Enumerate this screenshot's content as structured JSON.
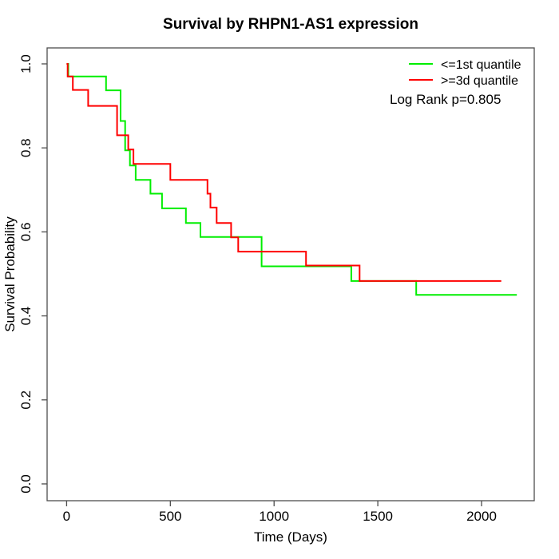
{
  "figure": {
    "background": "#ffffff",
    "title": "Survival by RHPN1-AS1 expression"
  },
  "chart_data": {
    "type": "line",
    "subtype": "kaplan-meier-step",
    "title": "Survival by RHPN1-AS1 expression",
    "xlabel": "Time (Days)",
    "ylabel": "Survival Probability",
    "xlim": [
      -94,
      2254
    ],
    "ylim": [
      -0.04,
      1.038
    ],
    "grid": false,
    "x_ticks": [
      {
        "value": 0,
        "label": "0"
      },
      {
        "value": 500,
        "label": "500"
      },
      {
        "value": 1000,
        "label": "1000"
      },
      {
        "value": 1500,
        "label": "1500"
      },
      {
        "value": 2000,
        "label": "2000"
      }
    ],
    "y_ticks": [
      {
        "value": 0.0,
        "label": "0.0"
      },
      {
        "value": 0.2,
        "label": "0.2"
      },
      {
        "value": 0.4,
        "label": "0.4"
      },
      {
        "value": 0.6,
        "label": "0.6"
      },
      {
        "value": 0.8,
        "label": "0.8"
      },
      {
        "value": 1.0,
        "label": "1.0"
      }
    ],
    "series": [
      {
        "name": "<=1st quantile",
        "color": "#00ee00",
        "step_points": [
          [
            0,
            1.0
          ],
          [
            8,
            0.97
          ],
          [
            190,
            0.937
          ],
          [
            260,
            0.864
          ],
          [
            282,
            0.794
          ],
          [
            305,
            0.758
          ],
          [
            333,
            0.724
          ],
          [
            404,
            0.691
          ],
          [
            460,
            0.656
          ],
          [
            575,
            0.621
          ],
          [
            645,
            0.588
          ],
          [
            940,
            0.518
          ],
          [
            1372,
            0.483
          ],
          [
            1685,
            0.45
          ],
          [
            2170,
            0.45
          ]
        ]
      },
      {
        "name": ">=3d quantile",
        "color": "#ff0000",
        "step_points": [
          [
            0,
            1.0
          ],
          [
            5,
            0.97
          ],
          [
            30,
            0.938
          ],
          [
            104,
            0.9
          ],
          [
            243,
            0.83
          ],
          [
            297,
            0.796
          ],
          [
            322,
            0.762
          ],
          [
            500,
            0.724
          ],
          [
            679,
            0.691
          ],
          [
            693,
            0.658
          ],
          [
            723,
            0.621
          ],
          [
            793,
            0.587
          ],
          [
            827,
            0.553
          ],
          [
            1154,
            0.52
          ],
          [
            1412,
            0.483
          ],
          [
            2095,
            0.483
          ]
        ]
      }
    ],
    "legend": {
      "position": "top-right",
      "entries": [
        {
          "label": "<=1st quantile",
          "color": "#00ee00"
        },
        {
          "label": ">=3d quantile",
          "color": "#ff0000"
        }
      ],
      "note": "Log Rank p=0.805"
    }
  }
}
